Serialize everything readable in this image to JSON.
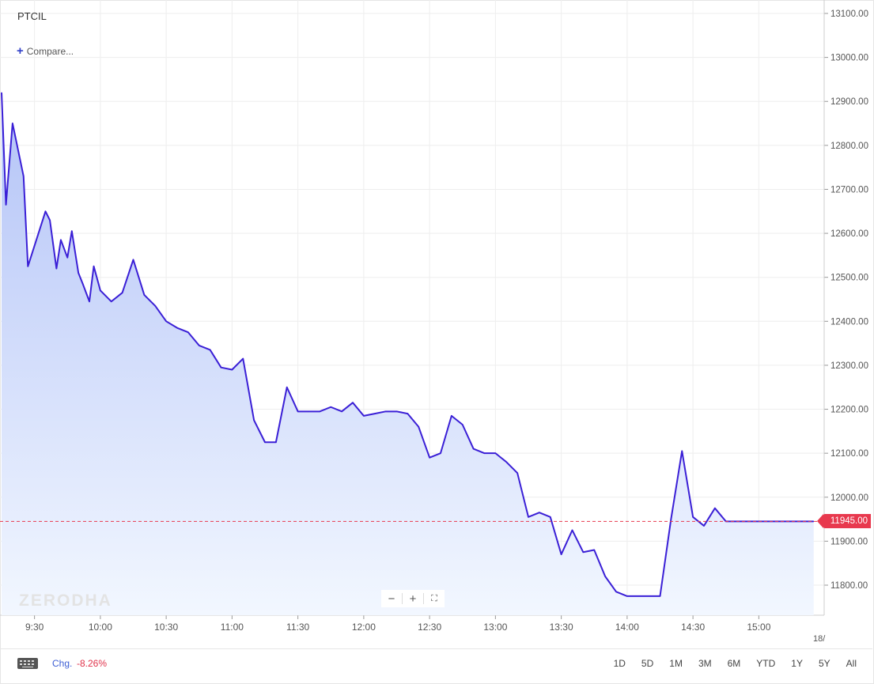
{
  "symbol": "PTCIL",
  "compare_label": "Compare...",
  "watermark": "ZERODHA",
  "current_price_label": "11945.00",
  "footer": {
    "chg_label": "Chg.",
    "chg_value": "-8.26%",
    "ranges": [
      "1D",
      "5D",
      "1M",
      "3M",
      "6M",
      "YTD",
      "1Y",
      "5Y",
      "All"
    ]
  },
  "colors": {
    "line": "#3a1fd6",
    "fill_top": "#b3c3f7",
    "fill_bottom": "#f2f7ff",
    "price_tag": "#e8394e",
    "grid": "#eeeeee"
  },
  "chart_data": {
    "type": "area",
    "title": "",
    "xlabel": "",
    "ylabel": "",
    "x_ticks": [
      "9:30",
      "10:00",
      "10:30",
      "11:00",
      "11:30",
      "12:00",
      "12:30",
      "13:00",
      "13:30",
      "14:00",
      "14:30",
      "15:00"
    ],
    "x_cut_label": "18/",
    "y_ticks": [
      "11800.00",
      "11900.00",
      "12000.00",
      "12100.00",
      "12200.00",
      "12300.00",
      "12400.00",
      "12500.00",
      "12600.00",
      "12700.00",
      "12800.00",
      "12900.00",
      "13000.00",
      "13100.00"
    ],
    "ylim": [
      11730,
      13130
    ],
    "current_price": 11945,
    "grid": true,
    "series": [
      {
        "x": [
          "9:15",
          "9:17",
          "9:20",
          "9:25",
          "9:27",
          "9:35",
          "9:37",
          "9:40",
          "9:42",
          "9:45",
          "9:47",
          "9:50",
          "9:52",
          "9:55",
          "9:57",
          "10:00",
          "10:05",
          "10:10",
          "10:15",
          "10:20",
          "10:25",
          "10:30",
          "10:35",
          "10:40",
          "10:45",
          "10:50",
          "10:55",
          "11:00",
          "11:05",
          "11:10",
          "11:15",
          "11:20",
          "11:25",
          "11:30",
          "11:35",
          "11:40",
          "11:45",
          "11:50",
          "11:55",
          "12:00",
          "12:05",
          "12:10",
          "12:15",
          "12:20",
          "12:25",
          "12:30",
          "12:35",
          "12:40",
          "12:45",
          "12:50",
          "12:55",
          "13:00",
          "13:05",
          "13:10",
          "13:15",
          "13:20",
          "13:25",
          "13:30",
          "13:35",
          "13:40",
          "13:45",
          "13:50",
          "13:55",
          "14:00",
          "14:05",
          "14:10",
          "14:15",
          "14:20",
          "14:25",
          "14:30",
          "14:35",
          "14:40",
          "14:45",
          "14:50",
          "14:55",
          "15:00",
          "15:05",
          "15:10",
          "15:15",
          "15:20",
          "15:25",
          "15:30"
        ],
        "y": [
          12920,
          12665,
          12850,
          12730,
          12525,
          12650,
          12630,
          12520,
          12585,
          12545,
          12605,
          12510,
          12485,
          12445,
          12525,
          12470,
          12445,
          12465,
          12540,
          12460,
          12435,
          12400,
          12385,
          12375,
          12345,
          12335,
          12295,
          12290,
          12315,
          12175,
          12125,
          12125,
          12250,
          12195,
          12195,
          12195,
          12205,
          12195,
          12215,
          12185,
          12190,
          12195,
          12195,
          12190,
          12160,
          12090,
          12100,
          12185,
          12165,
          12110,
          12100,
          12100,
          12080,
          12055,
          11955,
          11965,
          11955,
          11870,
          11925,
          11875,
          11880,
          11820,
          11785,
          11775,
          11775,
          11775,
          11775,
          11950,
          12105,
          11955,
          11935,
          11975,
          11945,
          11945,
          11945,
          11945,
          11945,
          11945,
          11945,
          11945,
          11945,
          11945
        ]
      }
    ]
  }
}
